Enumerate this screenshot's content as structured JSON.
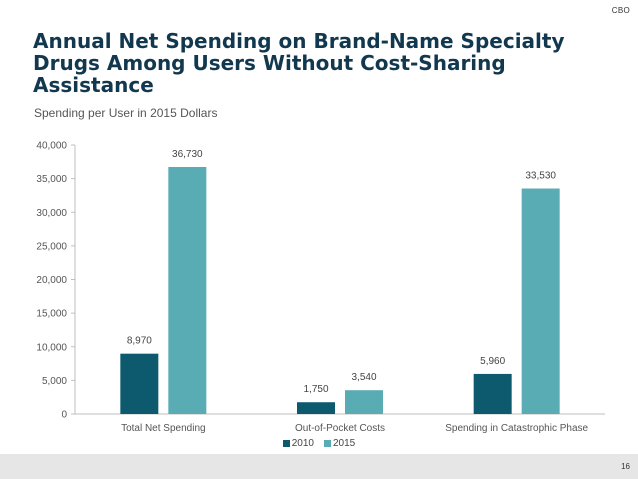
{
  "header": {
    "org": "CBO"
  },
  "title": "Annual Net Spending on Brand-Name Specialty Drugs Among Users Without Cost-Sharing Assistance",
  "subtitle": "Spending per User in 2015 Dollars",
  "footer": {
    "page_number": "16"
  },
  "colors": {
    "2010": "#0d5a6e",
    "2015": "#5aacb4",
    "title": "#12384f"
  },
  "chart_data": {
    "type": "bar",
    "categories": [
      "Total Net Spending",
      "Out-of-Pocket Costs",
      "Spending in Catastrophic Phase"
    ],
    "series": [
      {
        "name": "2010",
        "values": [
          8970,
          1750,
          5960
        ],
        "labels": [
          "8,970",
          "1,750",
          "5,960"
        ]
      },
      {
        "name": "2015",
        "values": [
          36730,
          3540,
          33530
        ],
        "labels": [
          "36,730",
          "3,540",
          "33,530"
        ]
      }
    ],
    "ylim": [
      0,
      40000
    ],
    "yticks": [
      0,
      5000,
      10000,
      15000,
      20000,
      25000,
      30000,
      35000,
      40000
    ],
    "ytick_labels": [
      "0",
      "5,000",
      "10,000",
      "15,000",
      "20,000",
      "25,000",
      "30,000",
      "35,000",
      "40,000"
    ],
    "legend": "bottom",
    "grid": false
  }
}
